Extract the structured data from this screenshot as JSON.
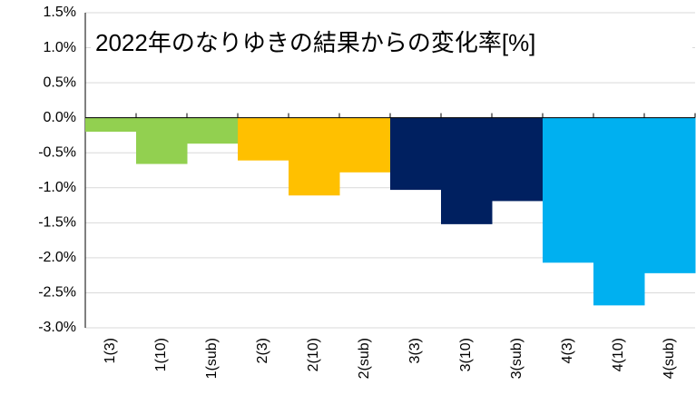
{
  "chart_data": {
    "type": "bar",
    "title": "2022年のなりゆきの結果からの変化率[%]",
    "categories": [
      "1(3)",
      "1(10)",
      "1(sub)",
      "2(3)",
      "2(10)",
      "2(sub)",
      "3(3)",
      "3(10)",
      "3(sub)",
      "4(3)",
      "4(10)",
      "4(sub)"
    ],
    "values": [
      -0.2,
      -0.66,
      -0.37,
      -0.61,
      -1.11,
      -0.78,
      -1.03,
      -1.52,
      -1.19,
      -2.07,
      -2.68,
      -2.22
    ],
    "colors": [
      "#92d050",
      "#92d050",
      "#92d050",
      "#ffc000",
      "#ffc000",
      "#ffc000",
      "#002060",
      "#002060",
      "#002060",
      "#00b0f0",
      "#00b0f0",
      "#00b0f0"
    ],
    "ylim": [
      -3.0,
      1.5
    ],
    "yticks": [
      {
        "value": -3.0,
        "label": "-3.0%"
      },
      {
        "value": -2.5,
        "label": "-2.5%"
      },
      {
        "value": -2.0,
        "label": "-2.0%"
      },
      {
        "value": -1.5,
        "label": "-1.5%"
      },
      {
        "value": -1.0,
        "label": "-1.0%"
      },
      {
        "value": -0.5,
        "label": "-0.5%"
      },
      {
        "value": 0.0,
        "label": "0.0%"
      },
      {
        "value": 0.5,
        "label": "0.5%"
      },
      {
        "value": 1.0,
        "label": "1.0%"
      },
      {
        "value": 1.5,
        "label": "1.5%"
      }
    ],
    "grid": true
  }
}
